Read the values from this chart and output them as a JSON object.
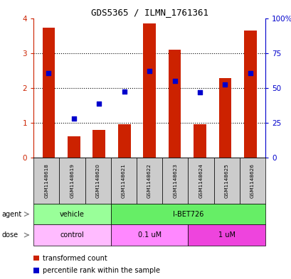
{
  "title": "GDS5365 / ILMN_1761361",
  "samples": [
    "GSM1148618",
    "GSM1148619",
    "GSM1148620",
    "GSM1148621",
    "GSM1148622",
    "GSM1148623",
    "GSM1148624",
    "GSM1148625",
    "GSM1148626"
  ],
  "red_values": [
    3.72,
    0.62,
    0.8,
    0.95,
    3.85,
    3.1,
    0.95,
    2.28,
    3.64
  ],
  "blue_values": [
    2.42,
    1.12,
    1.55,
    1.9,
    2.48,
    2.2,
    1.88,
    2.1,
    2.42
  ],
  "ylim_left": [
    0,
    4
  ],
  "ylim_right": [
    0,
    100
  ],
  "yticks_left": [
    0,
    1,
    2,
    3,
    4
  ],
  "yticks_right": [
    0,
    25,
    50,
    75,
    100
  ],
  "ytick_labels_right": [
    "0",
    "25",
    "50",
    "75",
    "100%"
  ],
  "red_color": "#cc2200",
  "blue_color": "#0000cc",
  "left_axis_color": "#cc2200",
  "right_axis_color": "#0000cc",
  "agent_groups": [
    {
      "label": "vehicle",
      "start": 0,
      "end": 3,
      "color": "#99ff99"
    },
    {
      "label": "I-BET726",
      "start": 3,
      "end": 9,
      "color": "#66ee66"
    }
  ],
  "dose_groups": [
    {
      "label": "control",
      "start": 0,
      "end": 3,
      "color": "#ffbbff"
    },
    {
      "label": "0.1 uM",
      "start": 3,
      "end": 6,
      "color": "#ff88ff"
    },
    {
      "label": "1 uM",
      "start": 6,
      "end": 9,
      "color": "#ee44dd"
    }
  ],
  "agent_label": "agent",
  "dose_label": "dose",
  "legend_red": "transformed count",
  "legend_blue": "percentile rank within the sample",
  "bar_width": 0.5,
  "grid_color": "black",
  "bg_color": "#ffffff",
  "sample_box_color": "#cccccc"
}
